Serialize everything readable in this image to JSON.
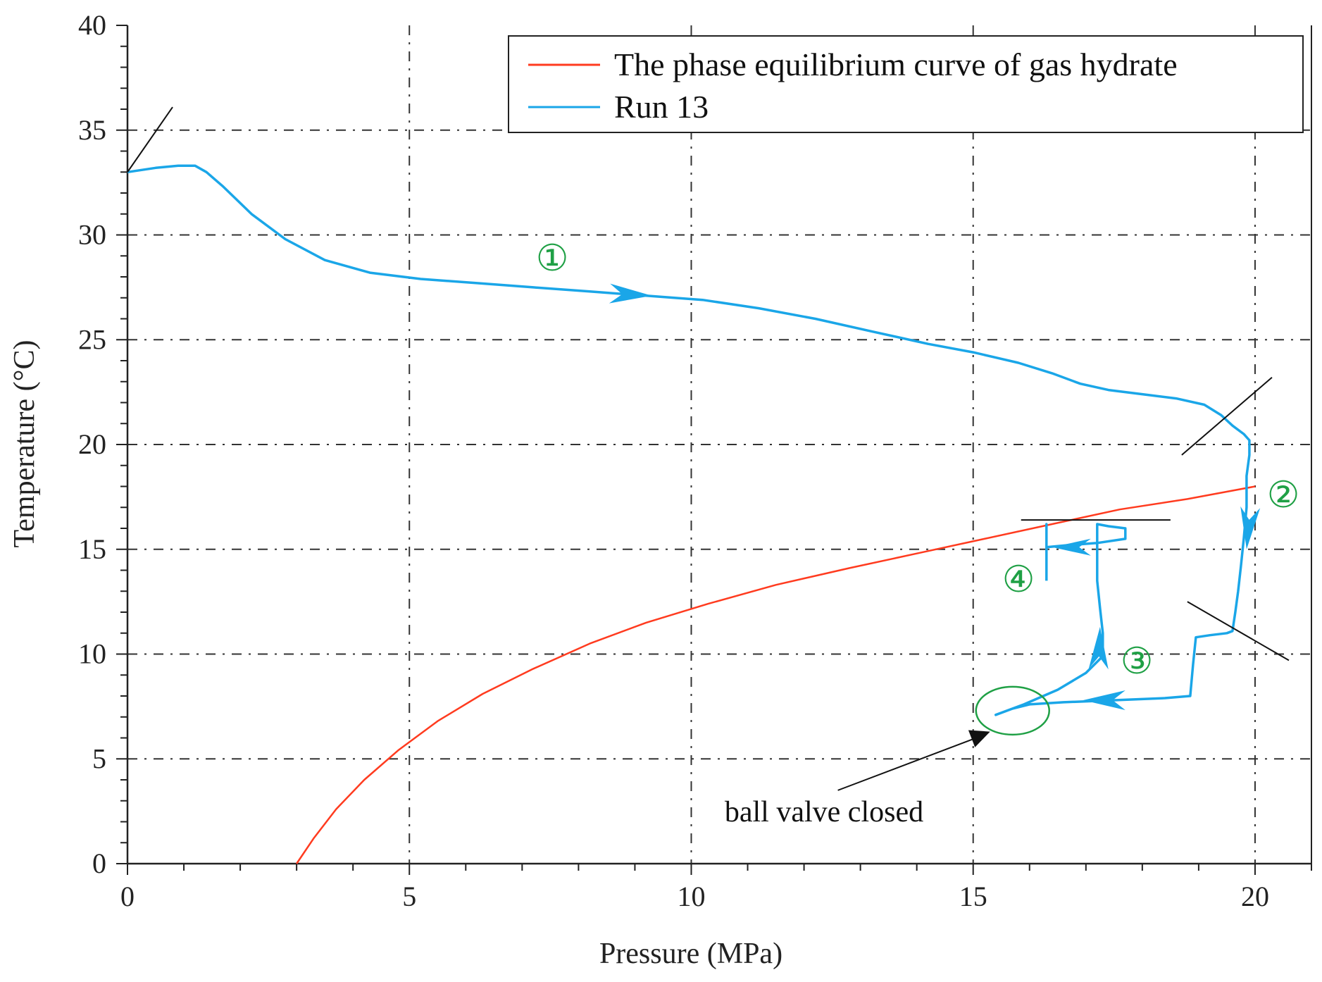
{
  "chart_data": {
    "type": "line",
    "title": "",
    "xlabel": "Pressure (MPa)",
    "ylabel": "Temperature (°C)",
    "xlim": [
      0,
      21
    ],
    "ylim": [
      0,
      40
    ],
    "xticks": [
      0,
      5,
      10,
      15,
      20
    ],
    "yticks": [
      0,
      5,
      10,
      15,
      20,
      25,
      30,
      35,
      40
    ],
    "grid": true,
    "legend": "top-right",
    "colors": {
      "phase": "#ff3b1f",
      "run": "#1aa6e8",
      "marker": "#1fa045",
      "black": "#111111"
    },
    "series": [
      {
        "name": "The phase equilibrium curve of gas hydrate",
        "color": "#ff3b1f",
        "x": [
          3.0,
          3.3,
          3.7,
          4.2,
          4.8,
          5.5,
          6.3,
          7.2,
          8.2,
          9.2,
          10.3,
          11.5,
          12.8,
          14.0,
          15.2,
          16.4,
          17.6,
          18.8,
          20.0
        ],
        "y": [
          0,
          1.2,
          2.6,
          4.0,
          5.4,
          6.8,
          8.1,
          9.3,
          10.5,
          11.5,
          12.4,
          13.3,
          14.1,
          14.8,
          15.5,
          16.2,
          16.9,
          17.4,
          18.0
        ]
      },
      {
        "name": "Run 13",
        "color": "#1aa6e8",
        "x": [
          0.0,
          0.5,
          0.9,
          1.2,
          1.4,
          1.7,
          2.2,
          2.8,
          3.5,
          4.3,
          5.2,
          6.2,
          7.2,
          8.2,
          9.2,
          10.2,
          11.2,
          12.2,
          13.2,
          14.2,
          15.0,
          15.8,
          16.4,
          16.9,
          17.4,
          18.0,
          18.6,
          19.1,
          19.4,
          19.6,
          19.8,
          19.9,
          19.9,
          19.85,
          19.85,
          19.8,
          19.75,
          19.7,
          19.65,
          19.6,
          19.5,
          19.2,
          18.95,
          18.9,
          18.85,
          18.4,
          17.5,
          16.6,
          16.0,
          15.7,
          15.4,
          15.9,
          16.5,
          17.0,
          17.3,
          17.3,
          17.25,
          17.2,
          17.2,
          17.2,
          17.2,
          17.4,
          17.7,
          17.7,
          17.2,
          16.7,
          16.3,
          16.3,
          16.3,
          16.3
        ],
        "y": [
          33.0,
          33.2,
          33.3,
          33.3,
          33.0,
          32.3,
          31.0,
          29.8,
          28.8,
          28.2,
          27.9,
          27.7,
          27.5,
          27.3,
          27.1,
          26.9,
          26.5,
          26.0,
          25.4,
          24.8,
          24.4,
          23.9,
          23.4,
          22.9,
          22.6,
          22.4,
          22.2,
          21.9,
          21.4,
          20.9,
          20.5,
          20.2,
          19.5,
          18.5,
          17.0,
          15.5,
          14.2,
          13.0,
          12.0,
          11.1,
          11.0,
          10.9,
          10.8,
          9.5,
          8.0,
          7.9,
          7.8,
          7.7,
          7.6,
          7.4,
          7.1,
          7.6,
          8.3,
          9.1,
          9.9,
          11.0,
          12.2,
          13.5,
          14.6,
          15.5,
          16.2,
          16.1,
          16.0,
          15.5,
          15.3,
          15.2,
          15.1,
          16.2,
          14.5,
          13.5
        ]
      }
    ],
    "legend_entries": [
      "The phase equilibrium curve of gas hydrate",
      "Run 13"
    ],
    "annotations": {
      "stage_1": "①",
      "stage_2": "②",
      "stage_3": "③",
      "stage_4": "④",
      "ball_valve": "ball valve closed"
    }
  }
}
